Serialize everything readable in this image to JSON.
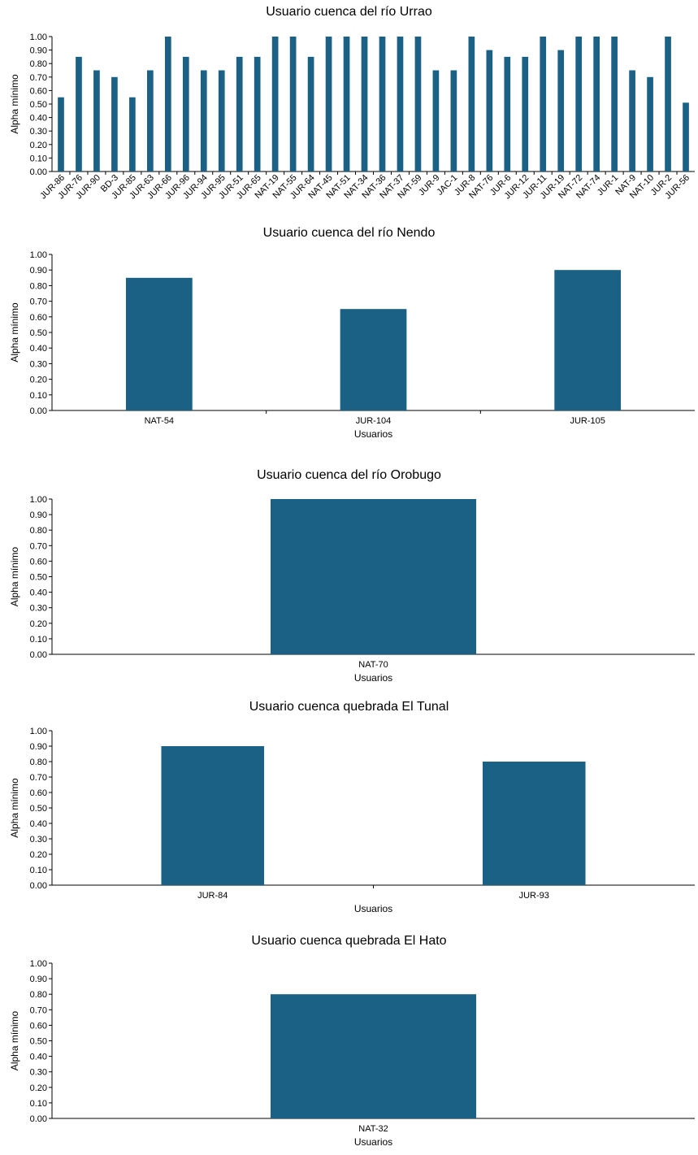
{
  "chart_data": [
    {
      "type": "bar",
      "title": "Usuario cuenca del río Urrao",
      "xlabel": "",
      "ylabel": "Alpha mínimo",
      "ylim": [
        0,
        1
      ],
      "yticks": [
        "0.00",
        "0.10",
        "0.20",
        "0.30",
        "0.40",
        "0.50",
        "0.60",
        "0.70",
        "0.80",
        "0.90",
        "1.00"
      ],
      "grid": false,
      "bar_color": "#1b6185",
      "categories": [
        "JUR-86",
        "JUR-76",
        "JUR-90",
        "BD-3",
        "JUR-85",
        "JUR-63",
        "JUR-66",
        "JUR-96",
        "JUR-94",
        "JUR-95",
        "JUR-51",
        "JUR-65",
        "NAT-19",
        "NAT-55",
        "JUR-64",
        "NAT-45",
        "NAT-51",
        "NAT-34",
        "NAT-36",
        "NAT-37",
        "NAT-59",
        "JUR-9",
        "JAC-1",
        "JUR-8",
        "NAT-76",
        "JUR-6",
        "JUR-12",
        "JUR-11",
        "JUR-19",
        "NAT-72",
        "NAT-74",
        "JUR-1",
        "NAT-9",
        "NAT-10",
        "JUR-2",
        "JUR-56"
      ],
      "values": [
        0.55,
        0.85,
        0.75,
        0.7,
        0.55,
        0.75,
        1.0,
        0.85,
        0.75,
        0.75,
        0.85,
        0.85,
        1.0,
        1.0,
        0.85,
        1.0,
        1.0,
        1.0,
        1.0,
        1.0,
        1.0,
        0.75,
        0.75,
        1.0,
        0.9,
        0.85,
        0.85,
        1.0,
        0.9,
        1.0,
        1.0,
        1.0,
        0.75,
        0.7,
        1.0,
        0.51
      ]
    },
    {
      "type": "bar",
      "title": "Usuario cuenca del río Nendo",
      "xlabel": "Usuarios",
      "ylabel": "Alpha mínimo",
      "ylim": [
        0,
        1
      ],
      "yticks": [
        "0.00",
        "0.10",
        "0.20",
        "0.30",
        "0.40",
        "0.50",
        "0.60",
        "0.70",
        "0.80",
        "0.90",
        "1.00"
      ],
      "grid": false,
      "bar_color": "#1b6185",
      "categories": [
        "NAT-54",
        "JUR-104",
        "JUR-105"
      ],
      "values": [
        0.85,
        0.65,
        0.9
      ]
    },
    {
      "type": "bar",
      "title": "Usuario cuenca del río Orobugo",
      "xlabel": "Usuarios",
      "ylabel": "Alpha mínimo",
      "ylim": [
        0,
        1
      ],
      "yticks": [
        "0.00",
        "0.10",
        "0.20",
        "0.30",
        "0.40",
        "0.50",
        "0.60",
        "0.70",
        "0.80",
        "0.90",
        "1.00"
      ],
      "grid": false,
      "bar_color": "#1b6185",
      "categories": [
        "NAT-70"
      ],
      "values": [
        1.0
      ]
    },
    {
      "type": "bar",
      "title": "Usuario cuenca quebrada El Tunal",
      "xlabel": "Usuarios",
      "ylabel": "Alpha mínimo",
      "ylim": [
        0,
        1
      ],
      "yticks": [
        "0.00",
        "0.10",
        "0.20",
        "0.30",
        "0.40",
        "0.50",
        "0.60",
        "0.70",
        "0.80",
        "0.90",
        "1.00"
      ],
      "grid": false,
      "bar_color": "#1b6185",
      "categories": [
        "JUR-84",
        "JUR-93"
      ],
      "values": [
        0.9,
        0.8
      ]
    },
    {
      "type": "bar",
      "title": "Usuario cuenca quebrada El Hato",
      "xlabel": "Usuarios",
      "ylabel": "Alpha mínimo",
      "ylim": [
        0,
        1
      ],
      "yticks": [
        "0.00",
        "0.10",
        "0.20",
        "0.30",
        "0.40",
        "0.50",
        "0.60",
        "0.70",
        "0.80",
        "0.90",
        "1.00"
      ],
      "grid": false,
      "bar_color": "#1b6185",
      "categories": [
        "NAT-32"
      ],
      "values": [
        0.8
      ]
    }
  ]
}
